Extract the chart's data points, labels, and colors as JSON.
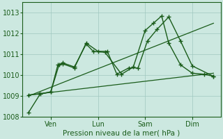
{
  "xlabel": "Pression niveau de la mer( hPa )",
  "bg_color": "#cce8e0",
  "line_color": "#1a5c1a",
  "ylim": [
    1008,
    1013.5
  ],
  "yticks": [
    1008,
    1009,
    1010,
    1011,
    1012,
    1013
  ],
  "xtick_labels": [
    "Ven",
    "Lun",
    "Sam",
    "Dim"
  ],
  "xtick_positions": [
    1,
    3,
    5,
    7
  ],
  "xlim": [
    -0.2,
    8.2
  ],
  "series1_x": [
    0.05,
    0.55,
    1.0,
    1.35,
    1.5,
    2.0,
    2.5,
    2.8,
    3.3,
    4.0,
    4.5,
    5.0,
    5.35,
    5.7,
    6.0,
    6.5,
    7.0,
    7.5,
    7.9
  ],
  "series1_y": [
    1008.2,
    1009.1,
    1009.2,
    1010.5,
    1010.6,
    1010.4,
    1011.5,
    1011.15,
    1011.1,
    1010.05,
    1010.4,
    1012.15,
    1012.5,
    1012.85,
    1011.55,
    1010.5,
    1010.1,
    1010.05,
    1009.95
  ],
  "series2_x": [
    0.05,
    0.5,
    1.0,
    1.3,
    1.5,
    2.0,
    2.5,
    3.0,
    3.4,
    3.8,
    4.3,
    4.7,
    5.1,
    5.5,
    6.0,
    6.5,
    7.0,
    7.9
  ],
  "series2_y": [
    1009.05,
    1009.1,
    1009.2,
    1010.5,
    1010.55,
    1010.35,
    1011.55,
    1011.15,
    1011.15,
    1010.05,
    1010.35,
    1010.35,
    1011.65,
    1012.2,
    1012.8,
    1011.65,
    1010.45,
    1009.95
  ],
  "trend1_x": [
    0.05,
    7.9
  ],
  "trend1_y": [
    1009.05,
    1010.1
  ],
  "trend2_x": [
    0.05,
    7.9
  ],
  "trend2_y": [
    1009.0,
    1012.5
  ],
  "marker": "+",
  "marker_size": 4,
  "lw": 1.0
}
